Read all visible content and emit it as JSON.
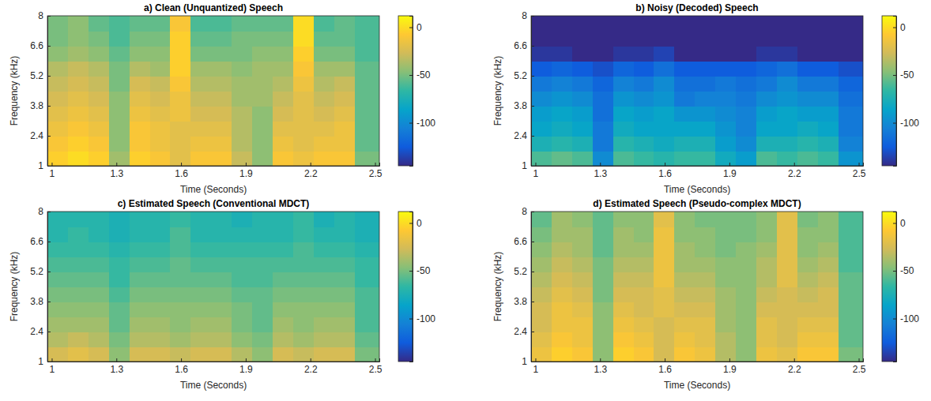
{
  "chart_data": [
    {
      "type": "heatmap",
      "title": "a) Clean (Unquantized) Speech",
      "x_label": "Time (Seconds)",
      "y_label": "Frequency (kHz)",
      "xlim": [
        0.98,
        2.52
      ],
      "ylim": [
        1,
        8
      ],
      "xticks": [
        1,
        1.3,
        1.6,
        1.9,
        2.2,
        2.5
      ],
      "yticks": [
        1,
        2.4,
        3.8,
        5.2,
        6.6,
        8
      ],
      "x_edges": [
        0.98,
        1.075,
        1.17,
        1.265,
        1.36,
        1.455,
        1.55,
        1.645,
        1.74,
        1.835,
        1.93,
        2.025,
        2.12,
        2.215,
        2.31,
        2.405,
        2.52
      ],
      "y_edges": [
        1,
        1.7,
        2.4,
        3.1,
        3.8,
        4.5,
        5.2,
        5.9,
        6.6,
        7.3,
        8
      ],
      "cells": [
        [
          -5,
          0,
          -5,
          -40,
          -5,
          -10,
          -20,
          -10,
          -10,
          -30,
          -45,
          -10,
          -15,
          -10,
          -10,
          -50
        ],
        [
          -10,
          -5,
          -10,
          -45,
          -10,
          -15,
          -20,
          -15,
          -15,
          -35,
          -45,
          -15,
          -20,
          -15,
          -15,
          -55
        ],
        [
          -15,
          -10,
          -15,
          -45,
          -10,
          -15,
          -20,
          -20,
          -20,
          -35,
          -45,
          -20,
          -20,
          -20,
          -15,
          -55
        ],
        [
          -20,
          -15,
          -20,
          -45,
          -15,
          -20,
          -15,
          -25,
          -25,
          -35,
          -45,
          -25,
          -20,
          -25,
          -20,
          -55
        ],
        [
          -25,
          -20,
          -25,
          -45,
          -20,
          -25,
          -15,
          -30,
          -30,
          -40,
          -40,
          -30,
          -20,
          -30,
          -25,
          -55
        ],
        [
          -30,
          -25,
          -30,
          -50,
          -25,
          -30,
          -10,
          -35,
          -35,
          -40,
          -40,
          -35,
          -15,
          -35,
          -30,
          -55
        ],
        [
          -35,
          -30,
          -35,
          -50,
          -35,
          -40,
          -5,
          -40,
          -40,
          -45,
          -40,
          -40,
          -10,
          -40,
          -40,
          -55
        ],
        [
          -45,
          -40,
          -45,
          -55,
          -45,
          -45,
          -5,
          -50,
          -50,
          -50,
          -45,
          -45,
          -5,
          -50,
          -50,
          -60
        ],
        [
          -50,
          -45,
          -50,
          -60,
          -50,
          -50,
          -5,
          -55,
          -55,
          -50,
          -50,
          -50,
          0,
          -55,
          -55,
          -60
        ],
        [
          -50,
          -45,
          -55,
          -60,
          -55,
          -55,
          -10,
          -60,
          -60,
          -55,
          -55,
          -55,
          0,
          -60,
          -55,
          -60
        ]
      ],
      "colorbar_lim": [
        -145,
        12
      ],
      "colorbar_ticks": [
        0,
        -50,
        -100
      ]
    },
    {
      "type": "heatmap",
      "title": "b) Noisy (Decoded) Speech",
      "x_label": "Time (Seconds)",
      "y_label": "Frequency (kHz)",
      "xlim": [
        0.98,
        2.52
      ],
      "ylim": [
        1,
        8
      ],
      "xticks": [
        1,
        1.3,
        1.6,
        1.9,
        2.2,
        2.5
      ],
      "yticks": [
        1,
        2.4,
        3.8,
        5.2,
        6.6,
        8
      ],
      "x_edges": [
        0.98,
        1.075,
        1.17,
        1.265,
        1.36,
        1.455,
        1.55,
        1.645,
        1.74,
        1.835,
        1.93,
        2.025,
        2.12,
        2.215,
        2.31,
        2.405,
        2.52
      ],
      "y_edges": [
        1,
        1.7,
        2.4,
        3.1,
        3.8,
        4.5,
        5.2,
        5.9,
        6.6,
        7.3,
        8
      ],
      "cells": [
        [
          -60,
          -55,
          -60,
          -100,
          -60,
          -65,
          -70,
          -65,
          -65,
          -80,
          -90,
          -60,
          -65,
          -60,
          -65,
          -95
        ],
        [
          -75,
          -70,
          -75,
          -110,
          -70,
          -75,
          -80,
          -75,
          -75,
          -90,
          -100,
          -75,
          -75,
          -70,
          -75,
          -105
        ],
        [
          -85,
          -80,
          -85,
          -110,
          -80,
          -85,
          -85,
          -85,
          -85,
          -95,
          -105,
          -85,
          -85,
          -80,
          -85,
          -110
        ],
        [
          -90,
          -85,
          -90,
          -115,
          -85,
          -90,
          -85,
          -95,
          -95,
          -100,
          -105,
          -90,
          -85,
          -90,
          -90,
          -110
        ],
        [
          -100,
          -95,
          -100,
          -115,
          -95,
          -100,
          -95,
          -110,
          -105,
          -105,
          -110,
          -100,
          -95,
          -100,
          -100,
          -115
        ],
        [
          -110,
          -105,
          -110,
          -120,
          -105,
          -110,
          -100,
          -115,
          -115,
          -110,
          -115,
          -110,
          -100,
          -110,
          -110,
          -120
        ],
        [
          -125,
          -120,
          -125,
          -130,
          -120,
          -125,
          -115,
          -125,
          -125,
          -125,
          -125,
          -120,
          -115,
          -125,
          -125,
          -130
        ],
        [
          -140,
          -140,
          -145,
          -145,
          -140,
          -140,
          -135,
          -145,
          -145,
          -145,
          -145,
          -140,
          -140,
          -145,
          -145,
          -145
        ],
        [
          -145,
          -145,
          -145,
          -145,
          -145,
          -145,
          -145,
          -145,
          -145,
          -145,
          -145,
          -145,
          -145,
          -145,
          -145,
          -145
        ],
        [
          -145,
          -145,
          -145,
          -145,
          -145,
          -145,
          -145,
          -145,
          -145,
          -145,
          -145,
          -145,
          -145,
          -145,
          -145,
          -145
        ]
      ],
      "colorbar_lim": [
        -145,
        12
      ],
      "colorbar_ticks": [
        0,
        -50,
        -100
      ]
    },
    {
      "type": "heatmap",
      "title": "c) Estimated Speech (Conventional MDCT)",
      "x_label": "Time (Seconds)",
      "y_label": "Frequency (kHz)",
      "xlim": [
        0.98,
        2.52
      ],
      "ylim": [
        1,
        8
      ],
      "xticks": [
        1,
        1.3,
        1.6,
        1.9,
        2.2,
        2.5
      ],
      "yticks": [
        1,
        2.4,
        3.8,
        5.2,
        6.6,
        8
      ],
      "x_edges": [
        0.98,
        1.075,
        1.17,
        1.265,
        1.36,
        1.455,
        1.55,
        1.645,
        1.74,
        1.835,
        1.93,
        2.025,
        2.12,
        2.215,
        2.31,
        2.405,
        2.52
      ],
      "y_edges": [
        1,
        1.7,
        2.4,
        3.1,
        3.8,
        4.5,
        5.2,
        5.9,
        6.6,
        7.3,
        8
      ],
      "cells": [
        [
          -25,
          -20,
          -25,
          -45,
          -25,
          -25,
          -30,
          -25,
          -25,
          -35,
          -45,
          -25,
          -30,
          -25,
          -25,
          -50
        ],
        [
          -35,
          -30,
          -35,
          -50,
          -35,
          -35,
          -40,
          -35,
          -35,
          -45,
          -50,
          -35,
          -40,
          -35,
          -35,
          -55
        ],
        [
          -40,
          -40,
          -40,
          -55,
          -40,
          -40,
          -45,
          -40,
          -40,
          -50,
          -55,
          -40,
          -45,
          -40,
          -40,
          -60
        ],
        [
          -45,
          -45,
          -45,
          -55,
          -45,
          -45,
          -45,
          -45,
          -45,
          -50,
          -55,
          -45,
          -45,
          -45,
          -45,
          -60
        ],
        [
          -50,
          -50,
          -50,
          -60,
          -50,
          -50,
          -50,
          -50,
          -50,
          -55,
          -55,
          -50,
          -50,
          -50,
          -50,
          -60
        ],
        [
          -55,
          -55,
          -55,
          -65,
          -55,
          -55,
          -55,
          -55,
          -55,
          -60,
          -60,
          -55,
          -55,
          -55,
          -55,
          -65
        ],
        [
          -60,
          -60,
          -60,
          -65,
          -60,
          -60,
          -55,
          -60,
          -60,
          -60,
          -60,
          -60,
          -60,
          -60,
          -60,
          -65
        ],
        [
          -65,
          -65,
          -65,
          -70,
          -65,
          -65,
          -60,
          -65,
          -65,
          -65,
          -65,
          -65,
          -60,
          -65,
          -65,
          -70
        ],
        [
          -70,
          -65,
          -70,
          -75,
          -70,
          -70,
          -60,
          -70,
          -70,
          -70,
          -70,
          -70,
          -65,
          -70,
          -70,
          -75
        ],
        [
          -70,
          -70,
          -70,
          -75,
          -70,
          -70,
          -65,
          -70,
          -70,
          -75,
          -70,
          -70,
          -65,
          -75,
          -70,
          -75
        ]
      ],
      "colorbar_lim": [
        -145,
        12
      ],
      "colorbar_ticks": [
        0,
        -50,
        -100
      ]
    },
    {
      "type": "heatmap",
      "title": "d) Estimated Speech (Pseudo-complex MDCT)",
      "x_label": "Time (Seconds)",
      "y_label": "Frequency (kHz)",
      "xlim": [
        0.98,
        2.52
      ],
      "ylim": [
        1,
        8
      ],
      "xticks": [
        1,
        1.3,
        1.6,
        1.9,
        2.2,
        2.5
      ],
      "yticks": [
        1,
        2.4,
        3.8,
        5.2,
        6.6,
        8
      ],
      "x_edges": [
        0.98,
        1.075,
        1.17,
        1.265,
        1.36,
        1.455,
        1.55,
        1.645,
        1.74,
        1.835,
        1.93,
        2.025,
        2.12,
        2.215,
        2.31,
        2.405,
        2.52
      ],
      "y_edges": [
        1,
        1.7,
        2.4,
        3.1,
        3.8,
        4.5,
        5.2,
        5.9,
        6.6,
        7.3,
        8
      ],
      "cells": [
        [
          -15,
          -5,
          -10,
          -45,
          -5,
          -10,
          -25,
          -10,
          -15,
          -35,
          -45,
          -15,
          -20,
          -10,
          -10,
          -50
        ],
        [
          -20,
          -10,
          -15,
          -45,
          -10,
          -15,
          -25,
          -15,
          -20,
          -35,
          -45,
          -20,
          -25,
          -15,
          -15,
          -55
        ],
        [
          -25,
          -15,
          -15,
          -45,
          -15,
          -20,
          -25,
          -20,
          -20,
          -40,
          -45,
          -20,
          -25,
          -20,
          -20,
          -55
        ],
        [
          -25,
          -15,
          -20,
          -45,
          -20,
          -25,
          -20,
          -25,
          -25,
          -40,
          -45,
          -25,
          -25,
          -25,
          -25,
          -55
        ],
        [
          -30,
          -20,
          -25,
          -50,
          -25,
          -25,
          -20,
          -30,
          -30,
          -40,
          -45,
          -30,
          -25,
          -30,
          -25,
          -55
        ],
        [
          -35,
          -25,
          -30,
          -50,
          -30,
          -30,
          -15,
          -35,
          -35,
          -45,
          -45,
          -35,
          -20,
          -35,
          -30,
          -55
        ],
        [
          -40,
          -30,
          -35,
          -50,
          -35,
          -35,
          -15,
          -40,
          -40,
          -45,
          -45,
          -35,
          -20,
          -40,
          -35,
          -60
        ],
        [
          -45,
          -35,
          -40,
          -55,
          -40,
          -40,
          -15,
          -40,
          -45,
          -50,
          -45,
          -40,
          -20,
          -45,
          -40,
          -60
        ],
        [
          -50,
          -40,
          -40,
          -55,
          -40,
          -45,
          -15,
          -45,
          -45,
          -50,
          -50,
          -45,
          -20,
          -45,
          -45,
          -60
        ],
        [
          -55,
          -40,
          -45,
          -55,
          -45,
          -45,
          -20,
          -45,
          -50,
          -50,
          -50,
          -45,
          -20,
          -50,
          -45,
          -60
        ]
      ],
      "colorbar_lim": [
        -145,
        12
      ],
      "colorbar_ticks": [
        0,
        -50,
        -100
      ]
    }
  ]
}
